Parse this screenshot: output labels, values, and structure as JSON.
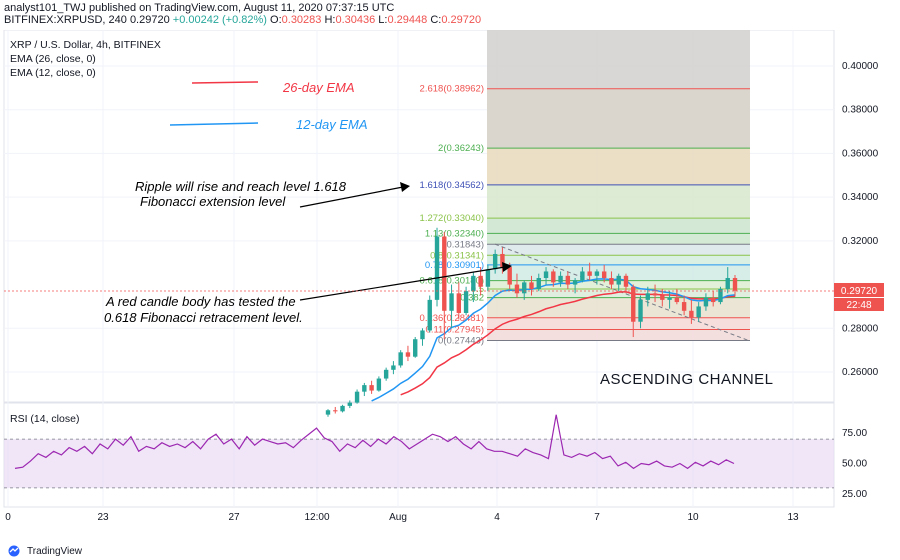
{
  "header": {
    "line1": "analyst101_TWJ published on TradingView.com, August 11, 2020 07:37:15 UTC",
    "symbol": "BITFINEX:XRPUSD, 240",
    "last": "0.29720",
    "change": "+0.00242 (+0.82%)",
    "o_label": "O:",
    "o": "0.30283",
    "h_label": "H:",
    "h": "0.30436",
    "l_label": "L:",
    "l": "0.29448",
    "c_label": "C:",
    "c": "0.29720"
  },
  "legend": {
    "title": "XRP / U.S. Dollar, 4h, BITFINEX",
    "ema26": "EMA (26, close, 0)",
    "ema12": "EMA (12, close, 0)",
    "rsi": "RSI (14, close)"
  },
  "annotations": {
    "ema26": "26-day EMA",
    "ema12": "12-day EMA",
    "rise_line1": "Ripple will rise and reach level 1.618",
    "rise_line2": "Fibonacci extension level",
    "red_line1": "A red candle body has tested the",
    "red_line2": "0.618 Fibonacci retracement level.",
    "channel": "ASCENDING CHANNEL"
  },
  "price_badge": {
    "price": "0.29720",
    "timer": "22:48"
  },
  "colors": {
    "up": "#26a69a",
    "down": "#ef5350",
    "ema26": "#f23645",
    "ema12": "#2196f3",
    "rsi": "#9c27b0",
    "rsi_band": "#e9dcf5"
  },
  "chart_data": {
    "type": "candlestick",
    "price_axis": {
      "min": 0.25,
      "max": 0.41,
      "ticks": [
        "0.40000",
        "0.38000",
        "0.36000",
        "0.34000",
        "0.32000",
        "0.28000",
        "0.26000"
      ]
    },
    "time_axis": {
      "ticks": [
        "0",
        "23",
        "27",
        "12:00",
        "Aug",
        "4",
        "7",
        "10",
        "13"
      ]
    },
    "rsi_axis": {
      "ticks": [
        "75.00",
        "50.00",
        "25.00"
      ],
      "band": [
        30,
        70
      ]
    },
    "fib_levels": [
      {
        "label": "2.618(0.38962)",
        "value": 0.38962,
        "color": "#ef5350"
      },
      {
        "label": "2(0.36243)",
        "value": 0.36243,
        "color": "#4caf50"
      },
      {
        "label": "1.618(0.34562)",
        "value": 0.34562,
        "color": "#3f51b5"
      },
      {
        "label": "1.272(0.33040)",
        "value": 0.3304,
        "color": "#8bc34a"
      },
      {
        "label": "1.13(0.32340)",
        "value": 0.3234,
        "color": "#4caf50"
      },
      {
        "label": "(0.31843)",
        "value": 0.31843,
        "color": "#787b86"
      },
      {
        "label": "0.8(0.31341)",
        "value": 0.31341,
        "color": "#8bc34a"
      },
      {
        "label": "0.78(0.30901)",
        "value": 0.30901,
        "color": "#2196f3"
      },
      {
        "label": "0.618(0.30180)",
        "value": 0.3018,
        "color": "#4caf50"
      },
      {
        "label": "0.5",
        "value": 0.298,
        "color": "#8bc34a"
      },
      {
        "label": "0.382",
        "value": 0.294,
        "color": "#4caf50"
      },
      {
        "label": "0.236(0.28481)",
        "value": 0.28481,
        "color": "#ef5350"
      },
      {
        "label": "0.11(0.27945)",
        "value": 0.27945,
        "color": "#ef5350"
      },
      {
        "label": "0(0.27443)",
        "value": 0.27443,
        "color": "#787b86"
      }
    ],
    "candles": [
      [
        0.2405,
        0.243,
        0.2395,
        0.2425
      ],
      [
        0.2425,
        0.244,
        0.241,
        0.242
      ],
      [
        0.242,
        0.245,
        0.2415,
        0.2445
      ],
      [
        0.2445,
        0.247,
        0.2435,
        0.246
      ],
      [
        0.246,
        0.252,
        0.2455,
        0.251
      ],
      [
        0.251,
        0.255,
        0.249,
        0.254
      ],
      [
        0.254,
        0.256,
        0.25,
        0.2515
      ],
      [
        0.2515,
        0.258,
        0.251,
        0.257
      ],
      [
        0.257,
        0.262,
        0.256,
        0.261
      ],
      [
        0.261,
        0.265,
        0.259,
        0.263
      ],
      [
        0.263,
        0.27,
        0.262,
        0.269
      ],
      [
        0.269,
        0.272,
        0.265,
        0.267
      ],
      [
        0.267,
        0.276,
        0.2665,
        0.275
      ],
      [
        0.275,
        0.28,
        0.272,
        0.279
      ],
      [
        0.279,
        0.295,
        0.278,
        0.293
      ],
      [
        0.293,
        0.326,
        0.29,
        0.322
      ],
      [
        0.322,
        0.324,
        0.275,
        0.288
      ],
      [
        0.288,
        0.3,
        0.28,
        0.296
      ],
      [
        0.296,
        0.301,
        0.284,
        0.287
      ],
      [
        0.287,
        0.299,
        0.286,
        0.297
      ],
      [
        0.297,
        0.306,
        0.292,
        0.304
      ],
      [
        0.304,
        0.308,
        0.295,
        0.299
      ],
      [
        0.299,
        0.309,
        0.297,
        0.307
      ],
      [
        0.307,
        0.316,
        0.305,
        0.314
      ],
      [
        0.314,
        0.317,
        0.305,
        0.308
      ],
      [
        0.308,
        0.31,
        0.298,
        0.3
      ],
      [
        0.3,
        0.305,
        0.294,
        0.296
      ],
      [
        0.296,
        0.302,
        0.293,
        0.301
      ],
      [
        0.301,
        0.304,
        0.295,
        0.298
      ],
      [
        0.298,
        0.305,
        0.297,
        0.303
      ],
      [
        0.303,
        0.308,
        0.3,
        0.306
      ],
      [
        0.306,
        0.307,
        0.299,
        0.301
      ],
      [
        0.301,
        0.306,
        0.299,
        0.304
      ],
      [
        0.304,
        0.306,
        0.298,
        0.3
      ],
      [
        0.3,
        0.303,
        0.296,
        0.302
      ],
      [
        0.302,
        0.308,
        0.301,
        0.306
      ],
      [
        0.306,
        0.31,
        0.302,
        0.304
      ],
      [
        0.304,
        0.307,
        0.3,
        0.306
      ],
      [
        0.306,
        0.309,
        0.301,
        0.303
      ],
      [
        0.303,
        0.306,
        0.298,
        0.3
      ],
      [
        0.3,
        0.305,
        0.297,
        0.304
      ],
      [
        0.304,
        0.305,
        0.296,
        0.299
      ],
      [
        0.299,
        0.3,
        0.276,
        0.283
      ],
      [
        0.283,
        0.295,
        0.28,
        0.293
      ],
      [
        0.293,
        0.299,
        0.29,
        0.296
      ],
      [
        0.296,
        0.3,
        0.292,
        0.295
      ],
      [
        0.295,
        0.298,
        0.29,
        0.293
      ],
      [
        0.293,
        0.297,
        0.289,
        0.294
      ],
      [
        0.294,
        0.298,
        0.291,
        0.292
      ],
      [
        0.292,
        0.295,
        0.286,
        0.288
      ],
      [
        0.288,
        0.293,
        0.282,
        0.285
      ],
      [
        0.285,
        0.292,
        0.283,
        0.29
      ],
      [
        0.29,
        0.296,
        0.288,
        0.294
      ],
      [
        0.294,
        0.297,
        0.29,
        0.292
      ],
      [
        0.292,
        0.299,
        0.291,
        0.298
      ],
      [
        0.298,
        0.308,
        0.296,
        0.303
      ],
      [
        0.303,
        0.3044,
        0.2945,
        0.2972
      ]
    ],
    "rsi": [
      46,
      47,
      52,
      58,
      55,
      60,
      57,
      63,
      60,
      64,
      58,
      66,
      62,
      70,
      65,
      72,
      60,
      64,
      62,
      67,
      64,
      66,
      63,
      68,
      62,
      70,
      74,
      66,
      70,
      62,
      72,
      65,
      70,
      68,
      66,
      67,
      63,
      69,
      74,
      79,
      71,
      68,
      60,
      66,
      63,
      69,
      64,
      70,
      66,
      72,
      68,
      62,
      66,
      70,
      74,
      72,
      68,
      72,
      66,
      62,
      68,
      62,
      60,
      60,
      58,
      56,
      62,
      59,
      57,
      54,
      60,
      57,
      55,
      58,
      56,
      59,
      54,
      56,
      48,
      51,
      46,
      50,
      49,
      52,
      48,
      47,
      50,
      46,
      51,
      48,
      52,
      49,
      53,
      50
    ],
    "rsi_spike_index": 40
  }
}
